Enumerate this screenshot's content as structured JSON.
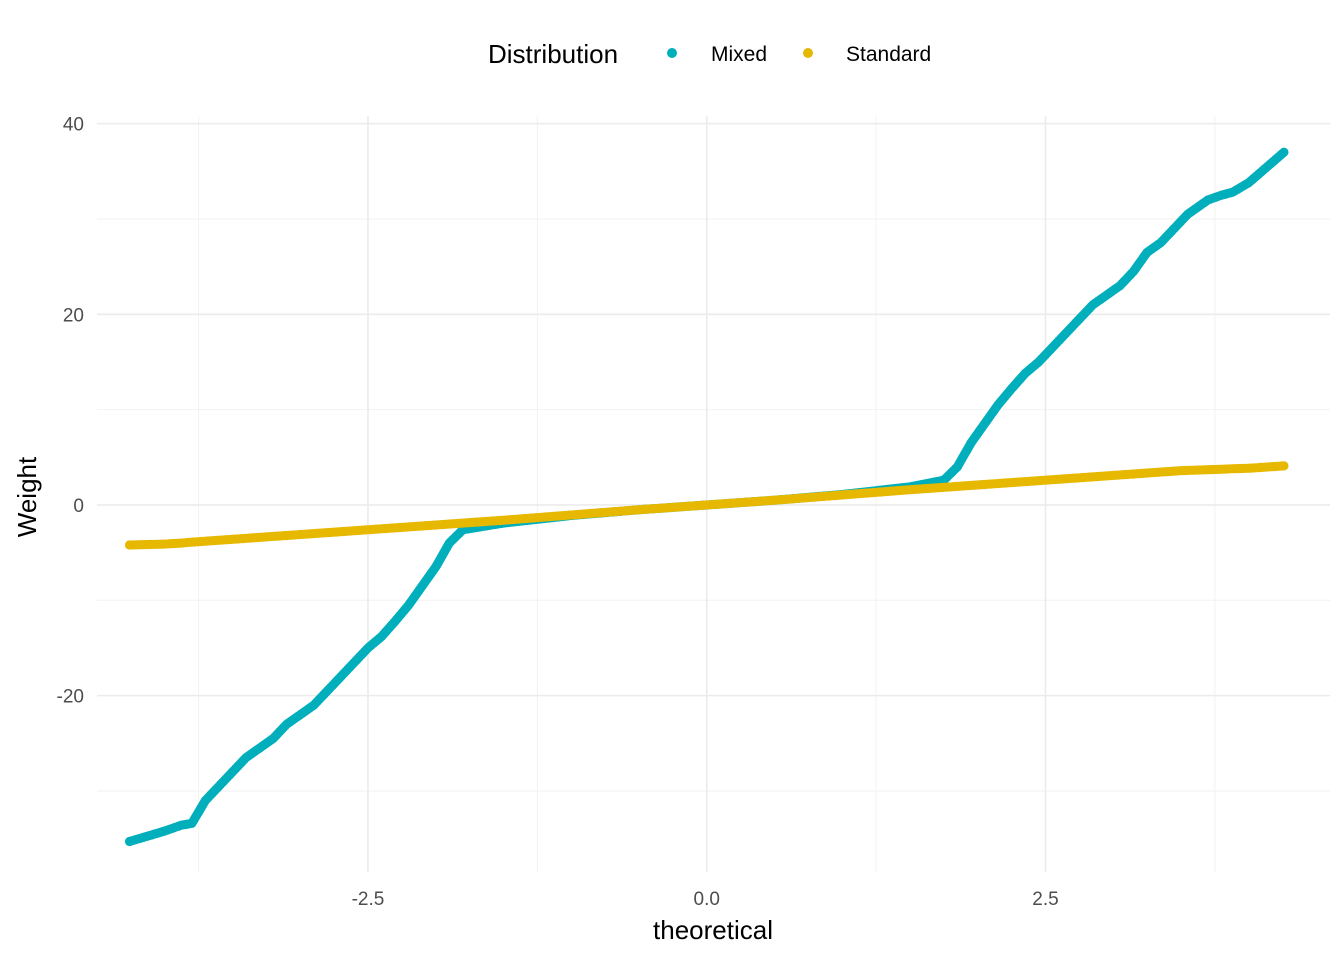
{
  "chart_data": {
    "type": "scatter",
    "title": "",
    "xlabel": "theoretical",
    "ylabel": "Weight",
    "xlim": [
      -4.5,
      4.6
    ],
    "ylim": [
      -38.5,
      40.8
    ],
    "x_ticks": [
      -2.5,
      0.0,
      2.5
    ],
    "x_tick_labels": [
      "-2.5",
      "0.0",
      "2.5"
    ],
    "y_ticks": [
      -20,
      0,
      20,
      40
    ],
    "y_tick_labels": [
      "-20",
      "0",
      "20",
      "40"
    ],
    "grid": true,
    "legend": {
      "title": "Distribution",
      "position": "top",
      "entries": [
        "Mixed",
        "Standard"
      ]
    },
    "series": [
      {
        "name": "Mixed",
        "color": "#00AFBB",
        "points": [
          [
            -4.26,
            -35.3
          ],
          [
            -4.0,
            -34.2
          ],
          [
            -3.88,
            -33.6
          ],
          [
            -3.8,
            -33.4
          ],
          [
            -3.7,
            -31.0
          ],
          [
            -3.6,
            -29.5
          ],
          [
            -3.5,
            -28.0
          ],
          [
            -3.4,
            -26.5
          ],
          [
            -3.3,
            -25.5
          ],
          [
            -3.2,
            -24.5
          ],
          [
            -3.1,
            -23.0
          ],
          [
            -3.0,
            -22.0
          ],
          [
            -2.9,
            -21.0
          ],
          [
            -2.8,
            -19.5
          ],
          [
            -2.7,
            -18.0
          ],
          [
            -2.6,
            -16.5
          ],
          [
            -2.5,
            -15.0
          ],
          [
            -2.4,
            -13.8
          ],
          [
            -2.3,
            -12.2
          ],
          [
            -2.2,
            -10.5
          ],
          [
            -2.1,
            -8.5
          ],
          [
            -2.0,
            -6.5
          ],
          [
            -1.9,
            -4.0
          ],
          [
            -1.8,
            -2.6
          ],
          [
            -1.5,
            -1.9
          ],
          [
            -1.0,
            -1.1
          ],
          [
            -0.5,
            -0.5
          ],
          [
            0.0,
            0.0
          ],
          [
            0.5,
            0.5
          ],
          [
            1.0,
            1.1
          ],
          [
            1.5,
            1.9
          ],
          [
            1.75,
            2.6
          ],
          [
            1.85,
            4.0
          ],
          [
            1.95,
            6.5
          ],
          [
            2.05,
            8.5
          ],
          [
            2.15,
            10.5
          ],
          [
            2.25,
            12.2
          ],
          [
            2.35,
            13.8
          ],
          [
            2.45,
            15.0
          ],
          [
            2.55,
            16.5
          ],
          [
            2.65,
            18.0
          ],
          [
            2.75,
            19.5
          ],
          [
            2.85,
            21.0
          ],
          [
            2.95,
            22.0
          ],
          [
            3.05,
            23.0
          ],
          [
            3.15,
            24.5
          ],
          [
            3.25,
            26.5
          ],
          [
            3.35,
            27.5
          ],
          [
            3.45,
            29.0
          ],
          [
            3.55,
            30.5
          ],
          [
            3.7,
            32.0
          ],
          [
            3.8,
            32.5
          ],
          [
            3.88,
            32.8
          ],
          [
            4.0,
            33.8
          ],
          [
            4.26,
            37.0
          ]
        ]
      },
      {
        "name": "Standard",
        "color": "#E7B800",
        "points": [
          [
            -4.26,
            -4.2
          ],
          [
            -4.0,
            -4.1
          ],
          [
            -3.88,
            -4.0
          ],
          [
            -3.8,
            -3.9
          ],
          [
            -3.7,
            -3.8
          ],
          [
            -3.5,
            -3.6
          ],
          [
            -3.0,
            -3.1
          ],
          [
            -2.5,
            -2.6
          ],
          [
            -2.0,
            -2.1
          ],
          [
            -1.5,
            -1.6
          ],
          [
            -1.0,
            -1.05
          ],
          [
            -0.5,
            -0.5
          ],
          [
            0.0,
            0.0
          ],
          [
            0.5,
            0.5
          ],
          [
            1.0,
            1.05
          ],
          [
            1.5,
            1.6
          ],
          [
            2.0,
            2.1
          ],
          [
            2.5,
            2.6
          ],
          [
            3.0,
            3.1
          ],
          [
            3.5,
            3.6
          ],
          [
            3.7,
            3.7
          ],
          [
            3.8,
            3.75
          ],
          [
            3.88,
            3.8
          ],
          [
            4.0,
            3.85
          ],
          [
            4.26,
            4.1
          ]
        ]
      }
    ]
  }
}
